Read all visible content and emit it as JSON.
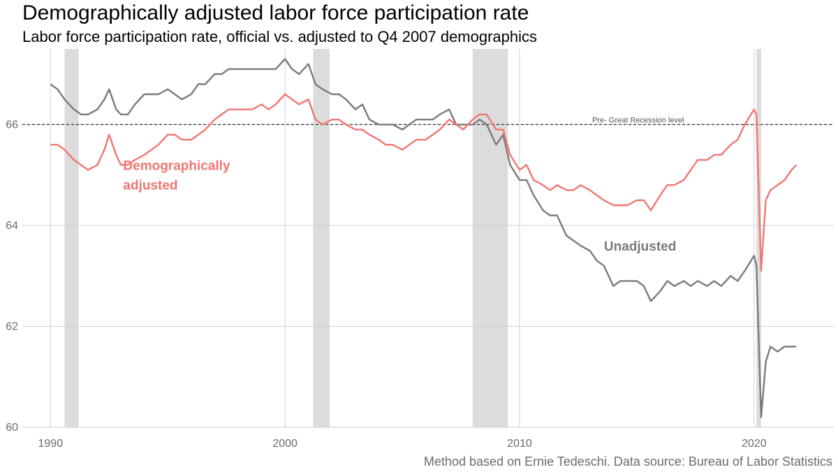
{
  "title": "Demographically adjusted labor force participation rate",
  "subtitle": "Labor force participation rate, official vs. adjusted to Q4 2007 demographics",
  "caption": "Method based on Ernie Tedeschi. Data source: Bureau of Labor Statistics",
  "chart_data": {
    "type": "line",
    "xlim": [
      1988.8,
      2023.4
    ],
    "ylim": [
      60,
      67.5
    ],
    "x_ticks": [
      1990,
      2000,
      2010,
      2020
    ],
    "x_tick_labels": [
      "1990",
      "2000",
      "2010",
      "2020"
    ],
    "y_ticks": [
      60,
      62,
      64,
      66
    ],
    "y_tick_labels": [
      "60",
      "62",
      "64",
      "66"
    ],
    "grid": true,
    "recessions": [
      [
        1990.6,
        1991.2
      ],
      [
        2001.2,
        2001.9
      ],
      [
        2008.0,
        2009.5
      ],
      [
        2020.1,
        2020.3
      ]
    ],
    "reference_line": {
      "y": 66.0,
      "label": "Pre- Great Recession level"
    },
    "colors": {
      "adjusted": "#f07672",
      "unadjusted": "#7a7a7a",
      "recession": "#dcdcdc",
      "grid": "#d0d0d0"
    },
    "series": [
      {
        "name": "Unadjusted",
        "label_lines": [
          "Unadjusted"
        ],
        "color": "#7a7a7a",
        "points": [
          [
            1990.0,
            66.8
          ],
          [
            1990.3,
            66.7
          ],
          [
            1990.6,
            66.5
          ],
          [
            1991.0,
            66.3
          ],
          [
            1991.3,
            66.2
          ],
          [
            1991.6,
            66.2
          ],
          [
            1992.0,
            66.3
          ],
          [
            1992.3,
            66.5
          ],
          [
            1992.5,
            66.7
          ],
          [
            1992.8,
            66.3
          ],
          [
            1993.0,
            66.2
          ],
          [
            1993.3,
            66.2
          ],
          [
            1993.6,
            66.4
          ],
          [
            1994.0,
            66.6
          ],
          [
            1994.3,
            66.6
          ],
          [
            1994.6,
            66.6
          ],
          [
            1995.0,
            66.7
          ],
          [
            1995.3,
            66.6
          ],
          [
            1995.6,
            66.5
          ],
          [
            1996.0,
            66.6
          ],
          [
            1996.3,
            66.8
          ],
          [
            1996.6,
            66.8
          ],
          [
            1997.0,
            67.0
          ],
          [
            1997.3,
            67.0
          ],
          [
            1997.6,
            67.1
          ],
          [
            1998.0,
            67.1
          ],
          [
            1998.3,
            67.1
          ],
          [
            1998.6,
            67.1
          ],
          [
            1999.0,
            67.1
          ],
          [
            1999.3,
            67.1
          ],
          [
            1999.6,
            67.1
          ],
          [
            2000.0,
            67.3
          ],
          [
            2000.3,
            67.1
          ],
          [
            2000.6,
            67.0
          ],
          [
            2001.0,
            67.2
          ],
          [
            2001.3,
            66.8
          ],
          [
            2001.6,
            66.7
          ],
          [
            2002.0,
            66.6
          ],
          [
            2002.3,
            66.6
          ],
          [
            2002.6,
            66.5
          ],
          [
            2003.0,
            66.3
          ],
          [
            2003.3,
            66.4
          ],
          [
            2003.6,
            66.1
          ],
          [
            2004.0,
            66.0
          ],
          [
            2004.3,
            66.0
          ],
          [
            2004.6,
            66.0
          ],
          [
            2005.0,
            65.9
          ],
          [
            2005.3,
            66.0
          ],
          [
            2005.6,
            66.1
          ],
          [
            2006.0,
            66.1
          ],
          [
            2006.3,
            66.1
          ],
          [
            2006.6,
            66.2
          ],
          [
            2007.0,
            66.3
          ],
          [
            2007.3,
            66.0
          ],
          [
            2007.6,
            66.0
          ],
          [
            2008.0,
            66.0
          ],
          [
            2008.3,
            66.1
          ],
          [
            2008.6,
            66.0
          ],
          [
            2009.0,
            65.6
          ],
          [
            2009.3,
            65.8
          ],
          [
            2009.6,
            65.2
          ],
          [
            2010.0,
            64.9
          ],
          [
            2010.3,
            64.9
          ],
          [
            2010.6,
            64.6
          ],
          [
            2011.0,
            64.3
          ],
          [
            2011.3,
            64.2
          ],
          [
            2011.6,
            64.2
          ],
          [
            2012.0,
            63.8
          ],
          [
            2012.3,
            63.7
          ],
          [
            2012.6,
            63.6
          ],
          [
            2013.0,
            63.5
          ],
          [
            2013.3,
            63.3
          ],
          [
            2013.6,
            63.2
          ],
          [
            2014.0,
            62.8
          ],
          [
            2014.3,
            62.9
          ],
          [
            2014.6,
            62.9
          ],
          [
            2015.0,
            62.9
          ],
          [
            2015.3,
            62.8
          ],
          [
            2015.6,
            62.5
          ],
          [
            2016.0,
            62.7
          ],
          [
            2016.3,
            62.9
          ],
          [
            2016.6,
            62.8
          ],
          [
            2017.0,
            62.9
          ],
          [
            2017.3,
            62.8
          ],
          [
            2017.6,
            62.9
          ],
          [
            2018.0,
            62.8
          ],
          [
            2018.3,
            62.9
          ],
          [
            2018.6,
            62.8
          ],
          [
            2019.0,
            63.0
          ],
          [
            2019.3,
            62.9
          ],
          [
            2019.6,
            63.1
          ],
          [
            2020.0,
            63.4
          ],
          [
            2020.1,
            63.2
          ],
          [
            2020.3,
            60.2
          ],
          [
            2020.5,
            61.3
          ],
          [
            2020.7,
            61.6
          ],
          [
            2021.0,
            61.5
          ],
          [
            2021.3,
            61.6
          ],
          [
            2021.6,
            61.6
          ],
          [
            2021.8,
            61.6
          ]
        ]
      },
      {
        "name": "Demographically adjusted",
        "label_lines": [
          "Demographically",
          "adjusted"
        ],
        "color": "#f07672",
        "points": [
          [
            1990.0,
            65.6
          ],
          [
            1990.3,
            65.6
          ],
          [
            1990.6,
            65.5
          ],
          [
            1991.0,
            65.3
          ],
          [
            1991.3,
            65.2
          ],
          [
            1991.6,
            65.1
          ],
          [
            1992.0,
            65.2
          ],
          [
            1992.3,
            65.5
          ],
          [
            1992.5,
            65.8
          ],
          [
            1992.8,
            65.4
          ],
          [
            1993.0,
            65.2
          ],
          [
            1993.3,
            65.2
          ],
          [
            1993.6,
            65.3
          ],
          [
            1994.0,
            65.4
          ],
          [
            1994.3,
            65.5
          ],
          [
            1994.6,
            65.6
          ],
          [
            1995.0,
            65.8
          ],
          [
            1995.3,
            65.8
          ],
          [
            1995.6,
            65.7
          ],
          [
            1996.0,
            65.7
          ],
          [
            1996.3,
            65.8
          ],
          [
            1996.6,
            65.9
          ],
          [
            1997.0,
            66.1
          ],
          [
            1997.3,
            66.2
          ],
          [
            1997.6,
            66.3
          ],
          [
            1998.0,
            66.3
          ],
          [
            1998.3,
            66.3
          ],
          [
            1998.6,
            66.3
          ],
          [
            1999.0,
            66.4
          ],
          [
            1999.3,
            66.3
          ],
          [
            1999.6,
            66.4
          ],
          [
            2000.0,
            66.6
          ],
          [
            2000.3,
            66.5
          ],
          [
            2000.6,
            66.4
          ],
          [
            2001.0,
            66.5
          ],
          [
            2001.3,
            66.1
          ],
          [
            2001.6,
            66.0
          ],
          [
            2002.0,
            66.1
          ],
          [
            2002.3,
            66.1
          ],
          [
            2002.6,
            66.0
          ],
          [
            2003.0,
            65.9
          ],
          [
            2003.3,
            65.9
          ],
          [
            2003.6,
            65.8
          ],
          [
            2004.0,
            65.7
          ],
          [
            2004.3,
            65.6
          ],
          [
            2004.6,
            65.6
          ],
          [
            2005.0,
            65.5
          ],
          [
            2005.3,
            65.6
          ],
          [
            2005.6,
            65.7
          ],
          [
            2006.0,
            65.7
          ],
          [
            2006.3,
            65.8
          ],
          [
            2006.6,
            65.9
          ],
          [
            2007.0,
            66.1
          ],
          [
            2007.3,
            66.0
          ],
          [
            2007.6,
            65.9
          ],
          [
            2008.0,
            66.1
          ],
          [
            2008.3,
            66.2
          ],
          [
            2008.6,
            66.2
          ],
          [
            2009.0,
            65.9
          ],
          [
            2009.3,
            65.9
          ],
          [
            2009.6,
            65.4
          ],
          [
            2010.0,
            65.1
          ],
          [
            2010.3,
            65.2
          ],
          [
            2010.6,
            64.9
          ],
          [
            2011.0,
            64.8
          ],
          [
            2011.3,
            64.7
          ],
          [
            2011.6,
            64.8
          ],
          [
            2012.0,
            64.7
          ],
          [
            2012.3,
            64.7
          ],
          [
            2012.6,
            64.8
          ],
          [
            2013.0,
            64.7
          ],
          [
            2013.3,
            64.6
          ],
          [
            2013.6,
            64.5
          ],
          [
            2014.0,
            64.4
          ],
          [
            2014.3,
            64.4
          ],
          [
            2014.6,
            64.4
          ],
          [
            2015.0,
            64.5
          ],
          [
            2015.3,
            64.5
          ],
          [
            2015.6,
            64.3
          ],
          [
            2016.0,
            64.6
          ],
          [
            2016.3,
            64.8
          ],
          [
            2016.6,
            64.8
          ],
          [
            2017.0,
            64.9
          ],
          [
            2017.3,
            65.1
          ],
          [
            2017.6,
            65.3
          ],
          [
            2018.0,
            65.3
          ],
          [
            2018.3,
            65.4
          ],
          [
            2018.6,
            65.4
          ],
          [
            2019.0,
            65.6
          ],
          [
            2019.3,
            65.7
          ],
          [
            2019.6,
            66.0
          ],
          [
            2020.0,
            66.3
          ],
          [
            2020.1,
            66.2
          ],
          [
            2020.3,
            63.1
          ],
          [
            2020.5,
            64.5
          ],
          [
            2020.7,
            64.7
          ],
          [
            2021.0,
            64.8
          ],
          [
            2021.3,
            64.9
          ],
          [
            2021.6,
            65.1
          ],
          [
            2021.8,
            65.2
          ]
        ]
      }
    ]
  }
}
